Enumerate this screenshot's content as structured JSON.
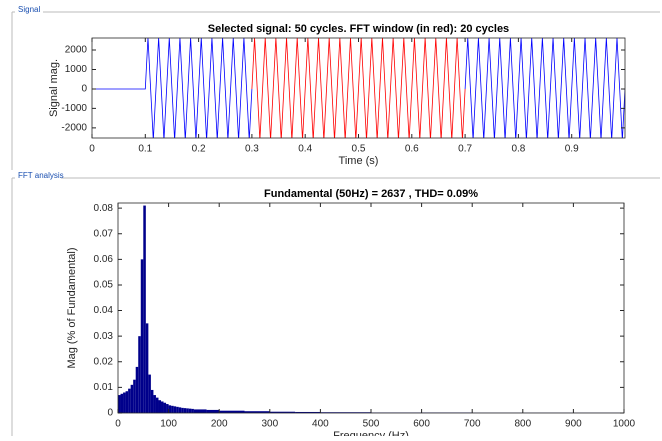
{
  "signal_panel": "Signal",
  "fft_panel": "FFT analysis",
  "chart_data": [
    {
      "type": "line",
      "title": "Selected signal: 50 cycles. FFT window (in red): 20 cycles",
      "xlabel": "Time (s)",
      "ylabel": "Signal mag.",
      "xlim": [
        0,
        1
      ],
      "ylim": [
        -2520,
        2620
      ],
      "xticks": [
        0,
        0.1,
        0.2,
        0.3,
        0.4,
        0.5,
        0.6,
        0.7,
        0.8,
        0.9
      ],
      "yticks": [
        -2000,
        -1000,
        0,
        1000,
        2000
      ],
      "series": [
        {
          "color": "#0000ff",
          "x": [
            0,
            0.1,
            0.105,
            0.115,
            0.125,
            0.135,
            0.145,
            0.155,
            0.165,
            0.175,
            0.185,
            0.195,
            0.205,
            0.215,
            0.225,
            0.235,
            0.245,
            0.255,
            0.265,
            0.275,
            0.285,
            0.295,
            0.3
          ],
          "values": [
            0,
            0,
            2637,
            -2637,
            2637,
            -2637,
            2637,
            -2637,
            2637,
            -2637,
            2637,
            -2637,
            2637,
            -2637,
            2637,
            -2637,
            2637,
            -2637,
            2637,
            -2637,
            2637,
            -2637,
            0
          ]
        },
        {
          "color": "#ff0000",
          "x": [
            0.3,
            0.305,
            0.315,
            0.325,
            0.335,
            0.345,
            0.355,
            0.365,
            0.375,
            0.385,
            0.395,
            0.405,
            0.415,
            0.425,
            0.435,
            0.445,
            0.455,
            0.465,
            0.475,
            0.485,
            0.495,
            0.505,
            0.515,
            0.525,
            0.535,
            0.545,
            0.555,
            0.565,
            0.575,
            0.585,
            0.595,
            0.605,
            0.615,
            0.625,
            0.635,
            0.645,
            0.655,
            0.665,
            0.675,
            0.685,
            0.695,
            0.7
          ],
          "values": [
            0,
            2637,
            -2637,
            2637,
            -2637,
            2637,
            -2637,
            2637,
            -2637,
            2637,
            -2637,
            2637,
            -2637,
            2637,
            -2637,
            2637,
            -2637,
            2637,
            -2637,
            2637,
            -2637,
            2637,
            -2637,
            2637,
            -2637,
            2637,
            -2637,
            2637,
            -2637,
            2637,
            -2637,
            2637,
            -2637,
            2637,
            -2637,
            2637,
            -2637,
            2637,
            -2637,
            2637,
            -2637,
            0
          ]
        },
        {
          "color": "#0000ff",
          "x": [
            0.7,
            0.705,
            0.715,
            0.725,
            0.735,
            0.745,
            0.755,
            0.765,
            0.775,
            0.785,
            0.795,
            0.805,
            0.815,
            0.825,
            0.835,
            0.845,
            0.855,
            0.865,
            0.875,
            0.885,
            0.895,
            0.905,
            0.915,
            0.925,
            0.935,
            0.945,
            0.955,
            0.965,
            0.975,
            0.985,
            0.995,
            1
          ],
          "values": [
            0,
            2637,
            -2637,
            2637,
            -2637,
            2637,
            -2637,
            2637,
            -2637,
            2637,
            -2637,
            2637,
            -2637,
            2637,
            -2637,
            2637,
            -2637,
            2637,
            -2637,
            2637,
            -2637,
            2637,
            -2637,
            2637,
            -2637,
            2637,
            -2637,
            2637,
            -2637,
            2637,
            -2637,
            0
          ]
        }
      ]
    },
    {
      "type": "histogram",
      "title": "Fundamental (50Hz) = 2637 , THD= 0.09%",
      "xlabel": "Frequency (Hz)",
      "ylabel": "Mag (% of Fundamental)",
      "xlim": [
        0,
        1000
      ],
      "ylim": [
        0,
        0.082
      ],
      "xticks": [
        0,
        100,
        200,
        300,
        400,
        500,
        600,
        700,
        800,
        900,
        1000
      ],
      "yticks": [
        0,
        0.01,
        0.02,
        0.03,
        0.04,
        0.05,
        0.06,
        0.07,
        0.08
      ],
      "color": "#00008b",
      "bins": [
        0,
        5,
        10,
        15,
        20,
        25,
        30,
        35,
        40,
        45,
        50,
        55,
        60,
        65,
        70,
        75,
        80,
        85,
        90,
        95,
        100,
        105,
        110,
        115,
        120,
        125,
        130,
        135,
        140,
        145,
        150,
        175,
        200,
        250,
        300,
        350,
        400,
        500,
        600,
        700,
        800,
        900,
        1000
      ],
      "values": [
        0.007,
        0.0075,
        0.008,
        0.0085,
        0.0095,
        0.011,
        0.013,
        0.018,
        0.03,
        0.06,
        0.081,
        0.035,
        0.015,
        0.009,
        0.007,
        0.006,
        0.005,
        0.0045,
        0.004,
        0.0035,
        0.003,
        0.0028,
        0.0026,
        0.0024,
        0.0022,
        0.002,
        0.0019,
        0.0018,
        0.0017,
        0.0016,
        0.0014,
        0.0012,
        0.0009,
        0.0007,
        0.0005,
        0.0004,
        0.0003,
        0.0002,
        0.0002,
        0.0001,
        0.0001,
        0.0001
      ]
    }
  ]
}
